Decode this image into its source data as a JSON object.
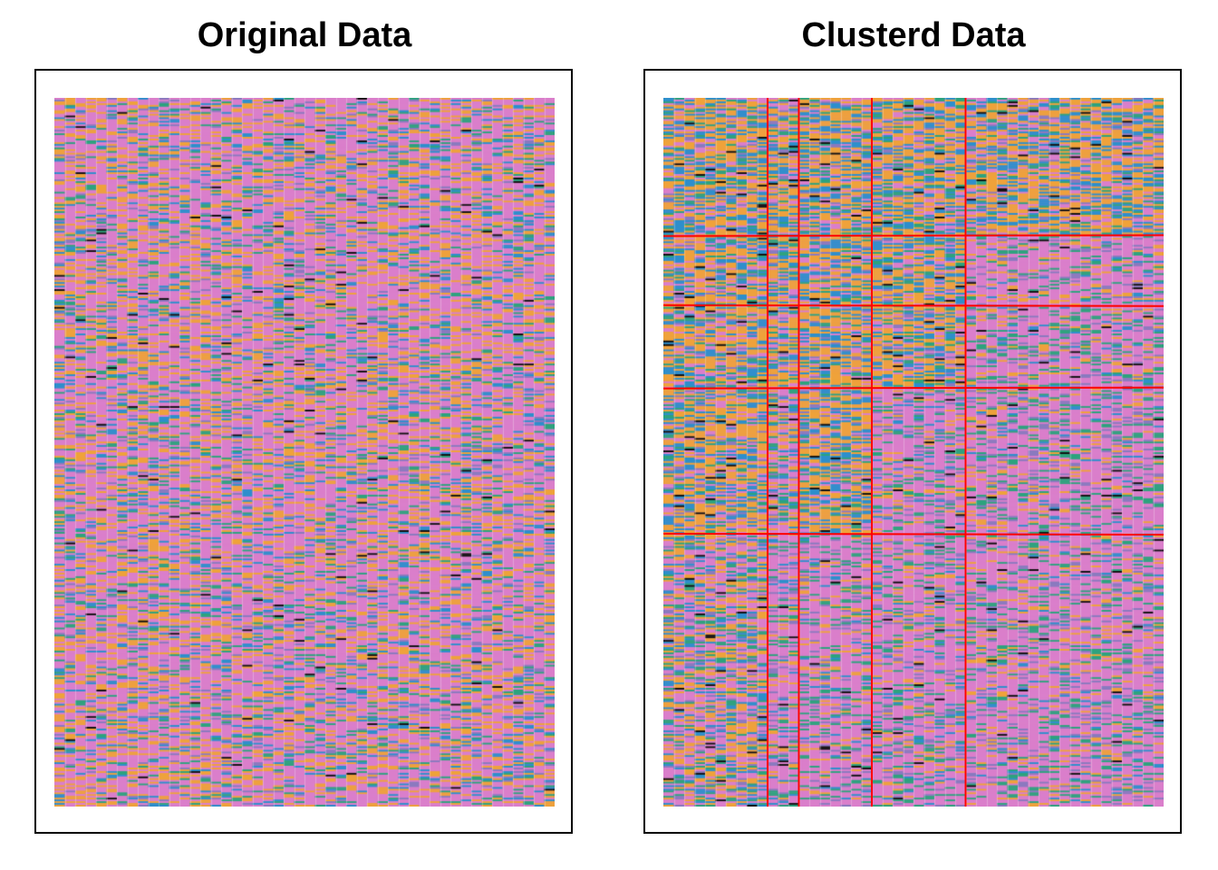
{
  "chart_data": [
    {
      "type": "heatmap",
      "title": "Original Data",
      "rows": 400,
      "columns": 48,
      "palette": {
        "pink": "#DA7FCB",
        "orange": "#EFA23B",
        "blue": "#2E8FCC",
        "green": "#2DA37E",
        "purple": "#8A7ABF",
        "black": "#111111"
      },
      "category_weights": {
        "pink": 0.55,
        "orange": 0.22,
        "blue": 0.09,
        "green": 0.08,
        "purple": 0.05,
        "black": 0.01
      },
      "xlabel": "",
      "ylabel": ""
    },
    {
      "type": "heatmap",
      "title": "Clusterd Data",
      "rows": 400,
      "columns": 48,
      "divider_color": "#FF0000",
      "column_clusters": [
        {
          "columns": [
            0,
            9
          ],
          "profile": "orange-rich"
        },
        {
          "columns": [
            10,
            12
          ],
          "profile": "mixed"
        },
        {
          "columns": [
            13,
            19
          ],
          "profile": "mixed"
        },
        {
          "columns": [
            20,
            28
          ],
          "profile": "orange-rich"
        },
        {
          "columns": [
            29,
            47
          ],
          "profile": "pink-rich"
        }
      ],
      "row_clusters": [
        {
          "rows": [
            0,
            77
          ]
        },
        {
          "rows": [
            78,
            116
          ]
        },
        {
          "rows": [
            117,
            163
          ]
        },
        {
          "rows": [
            164,
            245
          ]
        },
        {
          "rows": [
            246,
            399
          ]
        }
      ],
      "block_profiles": {
        "0": [
          "orange-rich",
          "orange-rich",
          "orange-rich",
          "orange-rich",
          "orange-rich"
        ],
        "1": [
          "orange-rich",
          "orange-rich",
          "orange-rich",
          "orange-rich",
          "pink-rich"
        ],
        "2": [
          "orange-rich",
          "orange-rich",
          "orange-rich",
          "orange-rich",
          "pink-rich"
        ],
        "3": [
          "orange-rich",
          "mixed",
          "orange-rich",
          "pink-rich",
          "pink-rich"
        ],
        "4": [
          "mixed",
          "pink-rich",
          "pink-rich",
          "pink-rich",
          "pink-rich"
        ]
      },
      "profiles": {
        "orange-rich": {
          "orange": 0.42,
          "blue": 0.22,
          "pink": 0.18,
          "green": 0.1,
          "purple": 0.06,
          "black": 0.02
        },
        "mixed": {
          "pink": 0.38,
          "orange": 0.26,
          "blue": 0.14,
          "green": 0.12,
          "purple": 0.08,
          "black": 0.02
        },
        "pink-rich": {
          "pink": 0.62,
          "green": 0.13,
          "orange": 0.1,
          "purple": 0.09,
          "blue": 0.05,
          "black": 0.01
        }
      },
      "xlabel": "",
      "ylabel": ""
    }
  ]
}
